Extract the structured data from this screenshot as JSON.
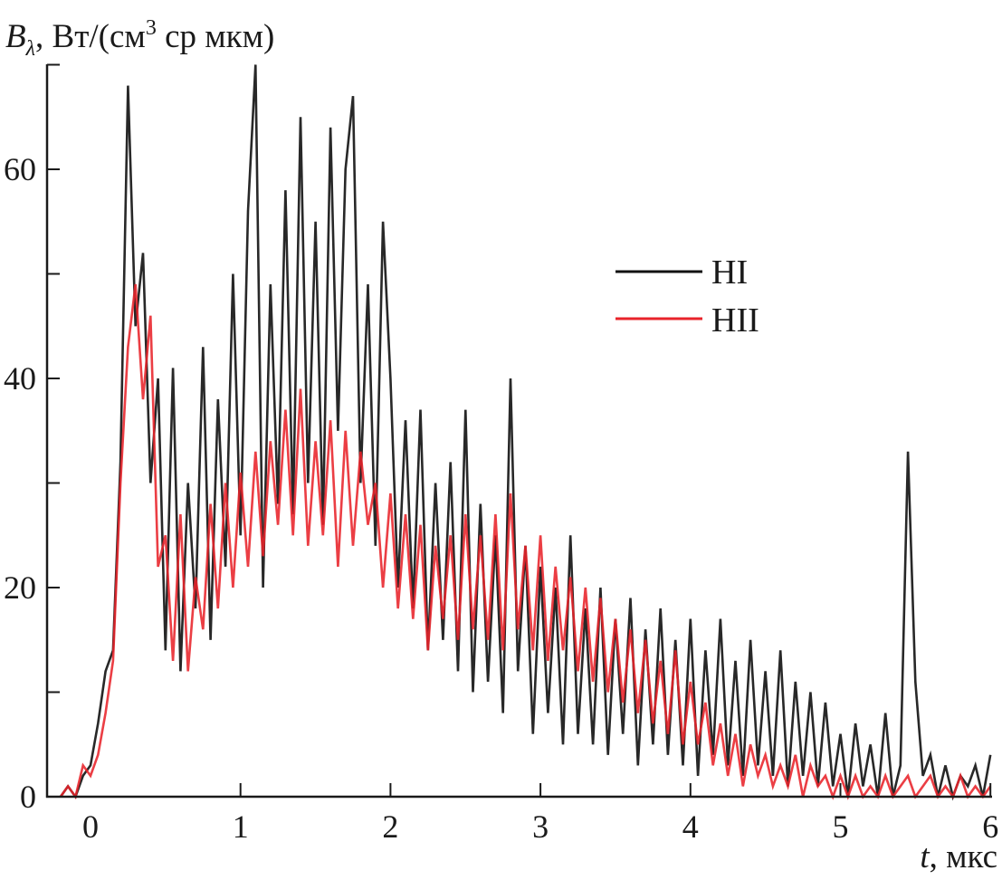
{
  "chart_data": {
    "type": "line",
    "title": "",
    "ylabel_main": "B",
    "ylabel_sub": "λ",
    "ylabel_rest": ", Вт/(см",
    "ylabel_sup": "3",
    "ylabel_end": " ср мкм)",
    "xlabel_var": "t",
    "xlabel_unit": ", мкс",
    "xlim": [
      -0.29,
      6.0
    ],
    "ylim": [
      0,
      70
    ],
    "x_ticks": [
      0,
      1,
      2,
      3,
      4,
      5,
      6
    ],
    "x_tick_labels": [
      "0",
      "1",
      "2",
      "3",
      "4",
      "5",
      "6"
    ],
    "y_ticks": [
      0,
      10,
      20,
      30,
      40,
      50,
      60,
      70
    ],
    "y_tick_labels": [
      {
        "value": 0,
        "label": "0"
      },
      {
        "value": 20,
        "label": "20"
      },
      {
        "value": 40,
        "label": "40"
      },
      {
        "value": 60,
        "label": "60"
      }
    ],
    "grid": false,
    "legend_placement": "center-right",
    "x_start": -0.2,
    "x_step": 0.05,
    "series": [
      {
        "name": "HI",
        "color": "#111111",
        "values": [
          0,
          1,
          0,
          2,
          3,
          7,
          12,
          14,
          32,
          68,
          45,
          52,
          30,
          40,
          14,
          41,
          12,
          30,
          18,
          43,
          15,
          38,
          22,
          50,
          25,
          56,
          70,
          20,
          49,
          28,
          58,
          27,
          65,
          30,
          55,
          26,
          64,
          35,
          60,
          67,
          30,
          49,
          24,
          55,
          40,
          20,
          36,
          18,
          37,
          14,
          30,
          15,
          32,
          12,
          37,
          10,
          28,
          11,
          25,
          8,
          40,
          12,
          24,
          6,
          22,
          8,
          20,
          5,
          25,
          6,
          18,
          5,
          20,
          4,
          17,
          6,
          19,
          3,
          16,
          5,
          18,
          4,
          15,
          3,
          17,
          2,
          14,
          4,
          17,
          3,
          13,
          2,
          15,
          3,
          12,
          2,
          14,
          1,
          11,
          2,
          10,
          1,
          9,
          1,
          6,
          0,
          7,
          1,
          5,
          0,
          8,
          0,
          3,
          33,
          11,
          2,
          4,
          0,
          3,
          0,
          2,
          1,
          3,
          0,
          4
        ]
      },
      {
        "name": "HII",
        "color": "#e8232a",
        "values": [
          0,
          1,
          0,
          3,
          2,
          4,
          8,
          13,
          30,
          43,
          49,
          38,
          46,
          22,
          25,
          13,
          27,
          12,
          21,
          16,
          28,
          18,
          30,
          20,
          31,
          22,
          33,
          23,
          34,
          26,
          37,
          25,
          39,
          24,
          34,
          25,
          36,
          22,
          35,
          24,
          33,
          26,
          30,
          20,
          29,
          18,
          27,
          17,
          26,
          14,
          24,
          17,
          25,
          15,
          27,
          16,
          25,
          15,
          27,
          14,
          29,
          16,
          24,
          14,
          25,
          13,
          22,
          14,
          21,
          12,
          20,
          11,
          19,
          10,
          17,
          9,
          16,
          8,
          15,
          7,
          13,
          6,
          14,
          5,
          11,
          5,
          9,
          3,
          7,
          2,
          6,
          1,
          5,
          2,
          4,
          1,
          3,
          1,
          4,
          0,
          3,
          1,
          2,
          0,
          2,
          0,
          2,
          0,
          1,
          0,
          2,
          0,
          1,
          2,
          0,
          1,
          2,
          0,
          1,
          0,
          2,
          0,
          1,
          0,
          1
        ]
      }
    ]
  }
}
